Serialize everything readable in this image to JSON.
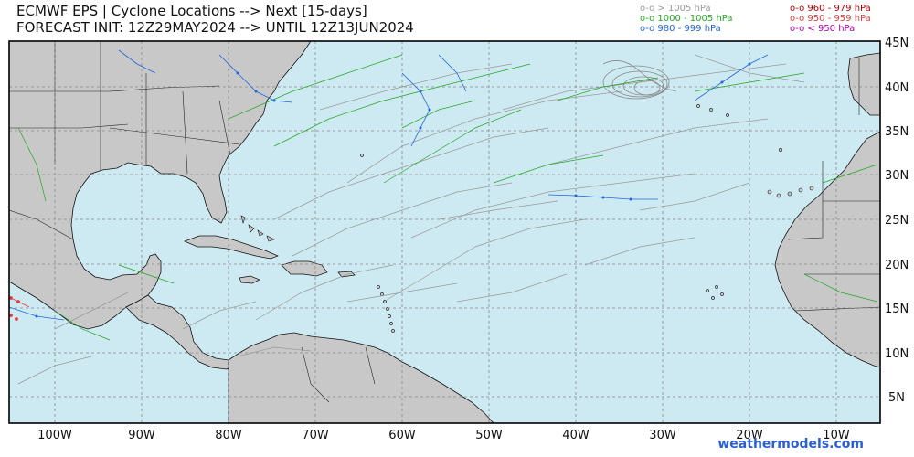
{
  "header": {
    "title_line1": "ECMWF EPS | Cyclone Locations --> Next [15-days]",
    "title_line2": "FORECAST INIT: 12Z29MAY2024 --> UNTIL 12Z13JUN2024"
  },
  "legend": {
    "left": [
      {
        "text": "o-o > 1005 hPa",
        "color": "#9a9a9a"
      },
      {
        "text": "o-o 1000 - 1005 hPa",
        "color": "#22a822"
      },
      {
        "text": "o-o 980 - 999 hPa",
        "color": "#2266dd"
      }
    ],
    "right": [
      {
        "text": "o-o 960 - 979 hPa",
        "color": "#b00000"
      },
      {
        "text": "o-o 950 - 959 hPa",
        "color": "#e03c3c"
      },
      {
        "text": "o-o < 950 hPa",
        "color": "#b000b0"
      }
    ]
  },
  "map": {
    "ocean_color": "#cde9f1",
    "land_color": "#c8c8c8",
    "lon_labels": [
      "100W",
      "90W",
      "80W",
      "70W",
      "60W",
      "50W",
      "40W",
      "30W",
      "20W",
      "10W"
    ],
    "lat_labels": [
      "45N",
      "40N",
      "35N",
      "30N",
      "25N",
      "20N",
      "15N",
      "10N",
      "5N"
    ]
  },
  "footer": {
    "credit": "weathermodels.com"
  }
}
